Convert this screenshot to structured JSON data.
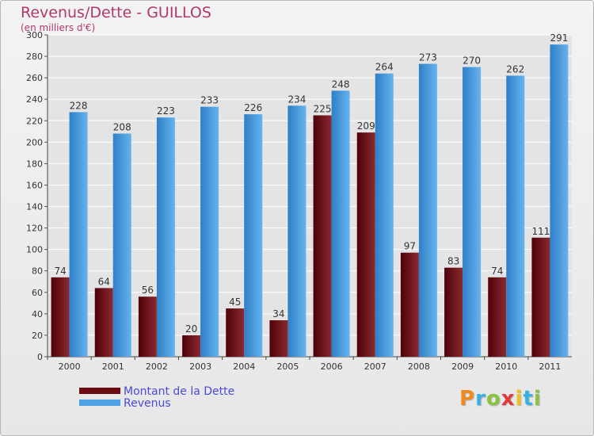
{
  "chart_data": {
    "type": "bar",
    "title": "Revenus/Dette - GUILLOS",
    "subtitle": "(en milliers d'€)",
    "xlabel": "",
    "ylabel": "",
    "categories": [
      "2000",
      "2001",
      "2002",
      "2003",
      "2004",
      "2005",
      "2006",
      "2007",
      "2008",
      "2009",
      "2010",
      "2011"
    ],
    "series": [
      {
        "name": "Montant de la Dette",
        "color": "#6b0b13",
        "values": [
          74,
          64,
          56,
          20,
          45,
          34,
          225,
          209,
          97,
          83,
          74,
          111
        ]
      },
      {
        "name": "Revenus",
        "color": "#4ea1e2",
        "values": [
          228,
          208,
          223,
          233,
          226,
          234,
          248,
          264,
          273,
          270,
          262,
          291
        ]
      }
    ],
    "ylim": [
      0,
      300
    ],
    "yticks": [
      0,
      20,
      40,
      60,
      80,
      100,
      120,
      140,
      160,
      180,
      200,
      220,
      240,
      260,
      280,
      300
    ],
    "grid": true,
    "legend_position": "bottom-left"
  },
  "branding": {
    "logo_letters": [
      "P",
      "r",
      "o",
      "x",
      "i",
      "t",
      "i"
    ],
    "logo_colors": [
      "#f08a1c",
      "#3ab0e0",
      "#8ac43f",
      "#e03a3a",
      "#f0c020",
      "#3ab0e0",
      "#8ac43f"
    ]
  },
  "colors": {
    "title": "#b0386a",
    "legend_text": "#4a4ad6",
    "grid": "#ffffff"
  }
}
